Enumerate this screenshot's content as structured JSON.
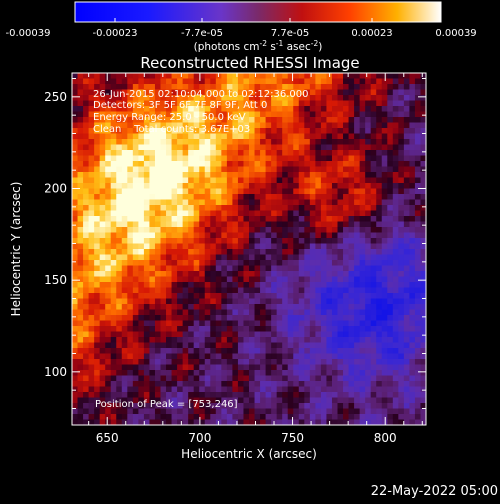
{
  "chart_data": {
    "type": "heatmap",
    "title": "Reconstructed RHESSI Image",
    "xlabel": "Heliocentric X (arcsec)",
    "ylabel": "Heliocentric Y (arcsec)",
    "x_ticks": [
      "650",
      "700",
      "750",
      "800"
    ],
    "y_ticks": [
      "100",
      "150",
      "200",
      "250"
    ],
    "xlim": [
      631,
      822
    ],
    "ylim": [
      71,
      263
    ],
    "colorbar": {
      "ticks": [
        "-0.00039",
        "-0.00023",
        "-7.7e-05",
        "7.7e-05",
        "0.00023",
        "0.00039"
      ],
      "unit_base": "(photons cm",
      "unit_exp1": "-2",
      "unit_mid": " s",
      "unit_exp2": "-1",
      "unit_mid2": " asec",
      "unit_exp3": "-2",
      "unit_end": ")",
      "range": [
        -0.00039,
        0.00039
      ]
    },
    "annotations": [
      "26-Jun-2015 02:10:04.000 to 02:12:36.000",
      "Detectors: 3F 5F 6F 7F 8F 9F, Att 0",
      "Energy Range: 25.0 - 50.0 keV",
      "Clean    Total counts: 3.67E+03"
    ],
    "peak_label": "Position of Peak = [753,246]",
    "grid": false
  },
  "footer": {
    "date": "22-May-2022 05:00"
  }
}
